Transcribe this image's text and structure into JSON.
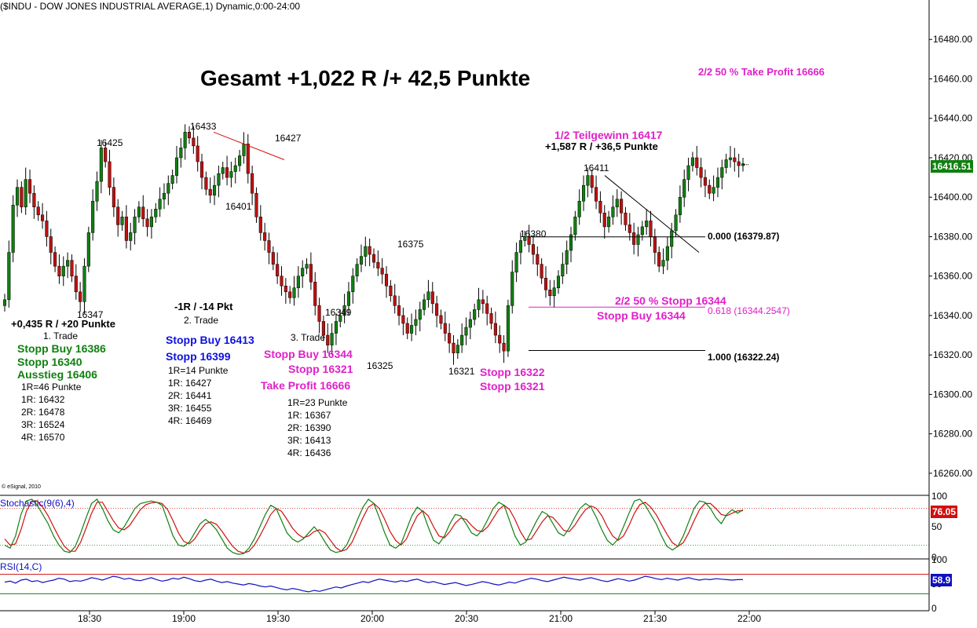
{
  "header": {
    "title": "($INDU - DOW JONES INDUSTRIAL AVERAGE,1) Dynamic,0:00-24:00"
  },
  "copyright": "© eSignal, 2010",
  "headline": "Gesamt +1,022 R /+ 42,5 Punkte",
  "colors": {
    "up": "#108010",
    "down": "#c01010",
    "pink": "#e020c8",
    "blue": "#1010e0",
    "green": "#108010",
    "stoch_k": "#108010",
    "stoch_d": "#d01010",
    "rsi": "#1010c0"
  },
  "chart_data": [
    {
      "type": "candlestick",
      "ylim": [
        16250,
        16500
      ],
      "y_ticks": [
        "16260.00",
        "16280.00",
        "16300.00",
        "16320.00",
        "16340.00",
        "16360.00",
        "16380.00",
        "16400.00",
        "16420.00",
        "16440.00",
        "16460.00",
        "16480.00"
      ],
      "x_ticks": [
        "18:30",
        "19:00",
        "19:30",
        "20:00",
        "20:30",
        "21:00",
        "21:30",
        "22:00"
      ],
      "last_price": "16416.51",
      "closes": [
        16348,
        16372,
        16396,
        16405,
        16395,
        16409,
        16402,
        16395,
        16391,
        16388,
        16380,
        16372,
        16365,
        16360,
        16365,
        16368,
        16360,
        16352,
        16347,
        16365,
        16382,
        16398,
        16408,
        16425,
        16418,
        16405,
        16395,
        16386,
        16390,
        16378,
        16382,
        16390,
        16395,
        16389,
        16385,
        16390,
        16394,
        16399,
        16402,
        16407,
        16411,
        16420,
        16425,
        16433,
        16430,
        16426,
        16418,
        16410,
        16404,
        16401,
        16406,
        16412,
        16415,
        16410,
        16413,
        16416,
        16421,
        16427,
        16412,
        16402,
        16390,
        16382,
        16378,
        16372,
        16366,
        16360,
        16355,
        16352,
        16349,
        16354,
        16360,
        16364,
        16366,
        16357,
        16345,
        16337,
        16330,
        16325,
        16331,
        16337,
        16340,
        16345,
        16352,
        16360,
        16366,
        16370,
        16375,
        16371,
        16367,
        16364,
        16361,
        16355,
        16350,
        16345,
        16340,
        16336,
        16331,
        16335,
        16338,
        16343,
        16348,
        16352,
        16346,
        16340,
        16336,
        16331,
        16326,
        16321,
        16325,
        16330,
        16334,
        16338,
        16343,
        16348,
        16346,
        16341,
        16336,
        16330,
        16326,
        16322,
        16345,
        16362,
        16372,
        16378,
        16380,
        16376,
        16371,
        16366,
        16359,
        16353,
        16350,
        16354,
        16360,
        16366,
        16373,
        16381,
        16390,
        16398,
        16406,
        16411,
        16405,
        16398,
        16392,
        16385,
        16390,
        16395,
        16399,
        16392,
        16386,
        16382,
        16376,
        16381,
        16385,
        16388,
        16380,
        16372,
        16365,
        16368,
        16375,
        16383,
        16391,
        16400,
        16409,
        16416,
        16420,
        16415,
        16410,
        16406,
        16402,
        16405,
        16410,
        16415,
        16419,
        16420,
        16418,
        16416,
        16417
      ]
    },
    {
      "type": "line",
      "title": "Stochastic(9(6),4)",
      "ylim": [
        0,
        100
      ],
      "y_ticks": [
        "100",
        "50",
        "0"
      ],
      "reference_lines": [
        20,
        80
      ],
      "last_value": "76.05",
      "k": [
        20,
        15,
        35,
        70,
        92,
        95,
        85,
        70,
        55,
        35,
        20,
        10,
        8,
        18,
        40,
        65,
        88,
        95,
        80,
        60,
        45,
        40,
        50,
        65,
        80,
        88,
        90,
        92,
        90,
        85,
        60,
        35,
        20,
        18,
        25,
        40,
        55,
        62,
        55,
        45,
        30,
        15,
        8,
        5,
        6,
        15,
        30,
        50,
        70,
        85,
        80,
        60,
        40,
        30,
        25,
        30,
        40,
        50,
        40,
        25,
        12,
        8,
        10,
        20,
        40,
        62,
        82,
        95,
        88,
        65,
        40,
        20,
        15,
        22,
        45,
        68,
        82,
        75,
        50,
        28,
        22,
        35,
        55,
        70,
        68,
        55,
        40,
        35,
        45,
        62,
        80,
        90,
        85,
        60,
        35,
        20,
        25,
        42,
        60,
        75,
        70,
        55,
        40,
        35,
        48,
        65,
        80,
        88,
        82,
        65,
        45,
        28,
        20,
        30,
        50,
        72,
        92,
        95,
        85,
        70,
        55,
        35,
        18,
        12,
        18,
        35,
        58,
        80,
        92,
        90,
        80,
        65,
        55,
        70,
        78,
        72,
        78
      ],
      "d": [
        30,
        20,
        22,
        45,
        75,
        92,
        92,
        82,
        68,
        50,
        33,
        18,
        10,
        10,
        25,
        48,
        72,
        90,
        90,
        75,
        60,
        48,
        45,
        52,
        65,
        78,
        86,
        89,
        90,
        88,
        78,
        60,
        40,
        26,
        22,
        30,
        44,
        55,
        58,
        54,
        43,
        30,
        18,
        10,
        7,
        10,
        20,
        35,
        52,
        70,
        80,
        75,
        62,
        48,
        38,
        32,
        35,
        42,
        45,
        40,
        28,
        16,
        10,
        13,
        25,
        45,
        65,
        82,
        88,
        80,
        62,
        42,
        28,
        20,
        30,
        50,
        68,
        76,
        68,
        50,
        35,
        32,
        42,
        56,
        64,
        62,
        52,
        44,
        42,
        50,
        64,
        78,
        85,
        78,
        62,
        42,
        28,
        30,
        44,
        58,
        68,
        65,
        55,
        44,
        42,
        52,
        66,
        78,
        84,
        80,
        68,
        50,
        35,
        28,
        35,
        52,
        72,
        86,
        90,
        82,
        70,
        54,
        38,
        24,
        18,
        24,
        40,
        60,
        78,
        88,
        88,
        80,
        70,
        68,
        72,
        76,
        76
      ]
    },
    {
      "type": "line",
      "title": "RSI(14,C)",
      "ylim": [
        0,
        100
      ],
      "y_ticks": [
        "100",
        "50",
        "0"
      ],
      "reference_lines": [
        30,
        70
      ],
      "last_value": "58.9",
      "values": [
        54,
        56,
        52,
        58,
        60,
        55,
        57,
        53,
        56,
        58,
        62,
        60,
        55,
        57,
        56,
        59,
        63,
        61,
        58,
        62,
        66,
        64,
        60,
        62,
        58,
        57,
        60,
        63,
        59,
        56,
        58,
        62,
        60,
        64,
        61,
        57,
        55,
        58,
        60,
        56,
        53,
        55,
        52,
        50,
        48,
        51,
        49,
        46,
        44,
        46,
        43,
        40,
        38,
        41,
        39,
        36,
        34,
        37,
        35,
        38,
        41,
        44,
        42,
        46,
        49,
        52,
        55,
        53,
        57,
        60,
        58,
        56,
        54,
        57,
        55,
        58,
        60,
        56,
        53,
        55,
        52,
        49,
        51,
        53,
        50,
        47,
        49,
        52,
        55,
        53,
        50,
        48,
        51,
        54,
        52,
        56,
        59,
        62,
        60,
        57,
        55,
        58,
        61,
        64,
        62,
        60,
        58,
        61,
        63,
        60,
        57,
        55,
        58,
        61,
        59,
        56,
        58,
        62,
        66,
        64,
        61,
        59,
        62,
        60,
        58,
        61,
        63,
        60,
        58,
        60,
        59,
        61,
        60,
        59,
        58,
        59,
        59
      ]
    }
  ],
  "labels": {
    "p16425": "16425",
    "p16347": "16347",
    "p16433": "16433",
    "p16401": "16401",
    "p16427": "16427",
    "p16349": "16349",
    "p16375": "16375",
    "p16325": "16325",
    "p16321": "16321",
    "p16380": "16380",
    "p16411": "16411"
  },
  "fib": {
    "l0": "0.000 (16379.87)",
    "l618": "0.618 (16344.2547)",
    "l1": "1.000 (16322.24)"
  },
  "trade1": {
    "result": "+0,435 R / +20 Punkte",
    "name": "1. Trade",
    "stopp_buy": "Stopp Buy 16386",
    "stopp": "Stopp 16340",
    "ausstieg": "Ausstieg 16406",
    "r": "1R=46 Punkte",
    "r1": "1R: 16432",
    "r2": "2R: 16478",
    "r3": "3R: 16524",
    "r4": "4R: 16570"
  },
  "trade2": {
    "result": "-1R / -14 Pkt",
    "name": "2. Trade",
    "stopp_buy": "Stopp Buy 16413",
    "stopp": "Stopp 16399",
    "r": "1R=14 Punkte",
    "r1": "1R: 16427",
    "r2": "2R: 16441",
    "r3": "3R: 16455",
    "r4": "4R: 16469"
  },
  "trade3": {
    "name": "3. Trade",
    "stopp_buy": "Stopp Buy 16344",
    "stopp": "Stopp 16321",
    "take_profit": "Take Profit 16666",
    "r": "1R=23 Punkte",
    "r1": "1R: 16367",
    "r2": "2R: 16390",
    "r3": "3R: 16413",
    "r4": "4R: 16436"
  },
  "entry_low": {
    "stopp_a": "Stopp 16322",
    "stopp_b": "Stopp 16321"
  },
  "right_notes": {
    "take_profit": "2/2 50 % Take Profit 16666",
    "teilgewinn": "1/2 Teilgewinn 16417",
    "teilgewinn_result": "+1,587 R / +36,5 Punkte",
    "stopp_half": "2/2 50 % Stopp 16344",
    "stopp_buy": "Stopp Buy 16344"
  }
}
